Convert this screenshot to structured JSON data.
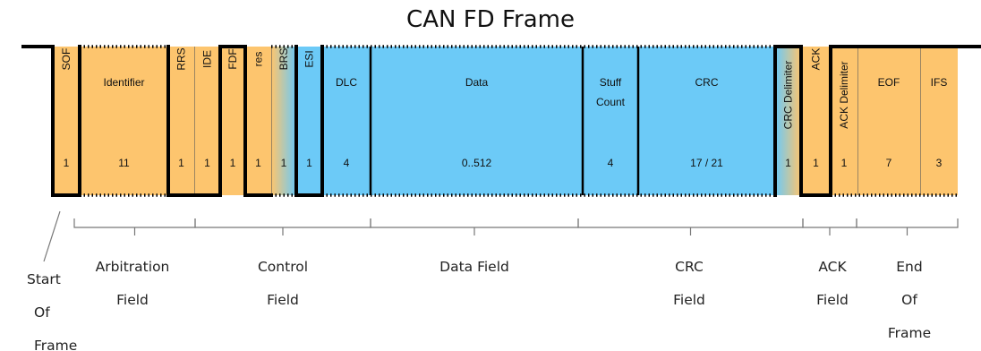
{
  "title": "CAN FD Frame",
  "colors": {
    "orange": "#fdc56e",
    "blue": "#6ccaf7",
    "line": "#000000",
    "bracket": "#777777"
  },
  "fields": [
    {
      "name": "SOF",
      "bits": "1",
      "color": "orange",
      "vertical": true
    },
    {
      "name": "Identifier",
      "bits": "11",
      "color": "orange",
      "vertical": false
    },
    {
      "name": "RRS",
      "bits": "1",
      "color": "orange",
      "vertical": true
    },
    {
      "name": "IDE",
      "bits": "1",
      "color": "orange",
      "vertical": true
    },
    {
      "name": "FDF",
      "bits": "1",
      "color": "orange",
      "vertical": true
    },
    {
      "name": "res",
      "bits": "1",
      "color": "orange",
      "vertical": true
    },
    {
      "name": "BRS",
      "bits": "1",
      "color": "orange-blue",
      "vertical": true
    },
    {
      "name": "ESI",
      "bits": "1",
      "color": "blue",
      "vertical": true
    },
    {
      "name": "DLC",
      "bits": "4",
      "color": "blue",
      "vertical": false
    },
    {
      "name": "Data",
      "bits": "0..512",
      "color": "blue",
      "vertical": false
    },
    {
      "name": "Stuff Count",
      "bits": "4",
      "color": "blue",
      "vertical": false
    },
    {
      "name": "CRC",
      "bits": "17 / 21",
      "color": "blue",
      "vertical": false
    },
    {
      "name": "CRC Delimiter",
      "bits": "1",
      "color": "blue-orange",
      "vertical": true
    },
    {
      "name": "ACK",
      "bits": "1",
      "color": "orange",
      "vertical": true
    },
    {
      "name": "ACK Delimiter",
      "bits": "1",
      "color": "orange",
      "vertical": true
    },
    {
      "name": "EOF",
      "bits": "7",
      "color": "orange",
      "vertical": false
    },
    {
      "name": "IFS",
      "bits": "3",
      "color": "orange",
      "vertical": false
    }
  ],
  "groups": [
    {
      "label": "Start\nOf\nFrame"
    },
    {
      "label": "Arbitration\nField"
    },
    {
      "label": "Control\nField"
    },
    {
      "label": "Data Field"
    },
    {
      "label": "CRC\nField"
    },
    {
      "label": "ACK\nField"
    },
    {
      "label": "End\nOf\nFrame"
    }
  ]
}
